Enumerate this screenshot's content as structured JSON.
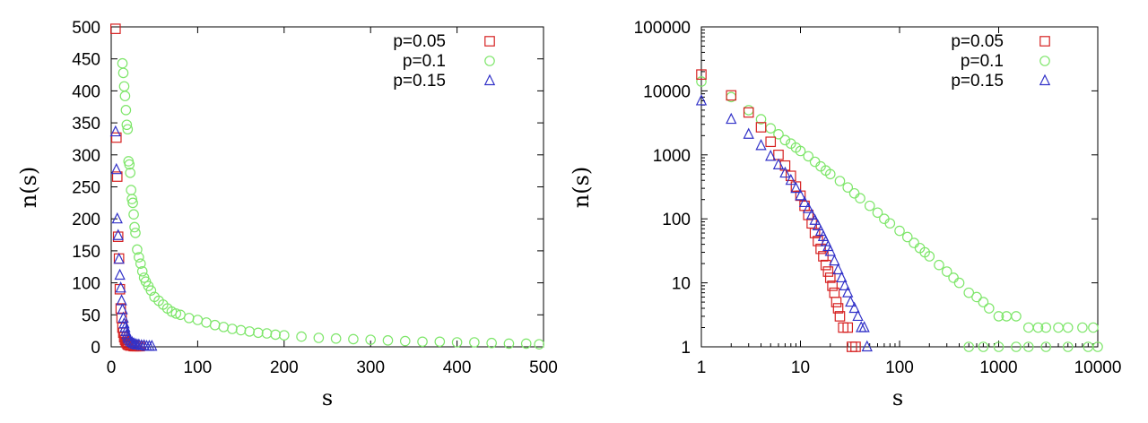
{
  "figure": {
    "left_panel_title": "",
    "right_panel_title": ""
  },
  "chart_data": [
    {
      "type": "scatter",
      "title": "",
      "xlabel": "s",
      "ylabel": "n(s)",
      "xscale": "linear",
      "yscale": "linear",
      "xlim": [
        0,
        500
      ],
      "ylim": [
        0,
        500
      ],
      "xticks": [
        "0",
        "100",
        "200",
        "300",
        "400",
        "500"
      ],
      "yticks": [
        "0",
        "50",
        "100",
        "150",
        "200",
        "250",
        "300",
        "350",
        "400",
        "450",
        "500"
      ],
      "legend_position": "top-right",
      "series": [
        {
          "name": "p=0.05",
          "marker": "square",
          "color": "#d62020",
          "points": [
            [
              5,
              497
            ],
            [
              6,
              327
            ],
            [
              7,
              266
            ],
            [
              8,
              172
            ],
            [
              9,
              138
            ],
            [
              10,
              90
            ],
            [
              11,
              60
            ],
            [
              12,
              45
            ],
            [
              13,
              30
            ],
            [
              14,
              22
            ],
            [
              15,
              15
            ],
            [
              16,
              11
            ],
            [
              17,
              8
            ],
            [
              18,
              6
            ],
            [
              19,
              4
            ],
            [
              20,
              3
            ],
            [
              22,
              2
            ],
            [
              24,
              2
            ],
            [
              26,
              1
            ],
            [
              28,
              1
            ],
            [
              30,
              1
            ],
            [
              33,
              1
            ]
          ]
        },
        {
          "name": "p=0.1",
          "marker": "circle",
          "color": "#7ee66a",
          "points": [
            [
              13,
              443
            ],
            [
              14,
              428
            ],
            [
              15,
              407
            ],
            [
              16,
              392
            ],
            [
              17,
              370
            ],
            [
              18,
              347
            ],
            [
              19,
              340
            ],
            [
              20,
              290
            ],
            [
              21,
              285
            ],
            [
              22,
              272
            ],
            [
              23,
              245
            ],
            [
              24,
              231
            ],
            [
              25,
              225
            ],
            [
              26,
              207
            ],
            [
              27,
              187
            ],
            [
              28,
              178
            ],
            [
              30,
              152
            ],
            [
              32,
              140
            ],
            [
              34,
              130
            ],
            [
              36,
              118
            ],
            [
              38,
              108
            ],
            [
              40,
              102
            ],
            [
              43,
              95
            ],
            [
              46,
              88
            ],
            [
              50,
              78
            ],
            [
              55,
              72
            ],
            [
              60,
              66
            ],
            [
              65,
              60
            ],
            [
              70,
              55
            ],
            [
              75,
              52
            ],
            [
              80,
              50
            ],
            [
              90,
              45
            ],
            [
              100,
              42
            ],
            [
              110,
              38
            ],
            [
              120,
              34
            ],
            [
              130,
              31
            ],
            [
              140,
              28
            ],
            [
              150,
              26
            ],
            [
              160,
              24
            ],
            [
              170,
              22
            ],
            [
              180,
              21
            ],
            [
              190,
              19
            ],
            [
              200,
              18
            ],
            [
              220,
              16
            ],
            [
              240,
              14
            ],
            [
              260,
              13
            ],
            [
              280,
              12
            ],
            [
              300,
              11
            ],
            [
              320,
              10
            ],
            [
              340,
              9
            ],
            [
              360,
              8
            ],
            [
              380,
              8
            ],
            [
              400,
              7
            ],
            [
              420,
              7
            ],
            [
              440,
              6
            ],
            [
              460,
              5
            ],
            [
              480,
              5
            ],
            [
              495,
              4
            ]
          ]
        },
        {
          "name": "p=0.15",
          "marker": "triangle",
          "color": "#3232c8",
          "points": [
            [
              5,
              336
            ],
            [
              6,
              277
            ],
            [
              7,
              200
            ],
            [
              8,
              174
            ],
            [
              9,
              137
            ],
            [
              10,
              112
            ],
            [
              11,
              92
            ],
            [
              12,
              72
            ],
            [
              13,
              58
            ],
            [
              14,
              45
            ],
            [
              15,
              36
            ],
            [
              16,
              30
            ],
            [
              17,
              24
            ],
            [
              18,
              19
            ],
            [
              19,
              15
            ],
            [
              20,
              12
            ],
            [
              22,
              9
            ],
            [
              24,
              7
            ],
            [
              26,
              5
            ],
            [
              28,
              4
            ],
            [
              30,
              3
            ],
            [
              32,
              3
            ],
            [
              35,
              2
            ],
            [
              38,
              2
            ],
            [
              41,
              1
            ],
            [
              44,
              1
            ],
            [
              47,
              1
            ]
          ]
        }
      ]
    },
    {
      "type": "scatter",
      "title": "",
      "xlabel": "s",
      "ylabel": "n(s)",
      "xscale": "log",
      "yscale": "log",
      "xlim": [
        1,
        10000
      ],
      "ylim": [
        1,
        100000
      ],
      "xticks": [
        "1",
        "10",
        "100",
        "1000",
        "10000"
      ],
      "yticks": [
        "1",
        "10",
        "100",
        "1000",
        "10000",
        "100000"
      ],
      "legend_position": "top-right",
      "series": [
        {
          "name": "p=0.05",
          "marker": "square",
          "color": "#d62020",
          "points": [
            [
              1,
              18000
            ],
            [
              2,
              8500
            ],
            [
              3,
              4600
            ],
            [
              4,
              2700
            ],
            [
              5,
              1600
            ],
            [
              6,
              1000
            ],
            [
              7,
              680
            ],
            [
              8,
              470
            ],
            [
              9,
              320
            ],
            [
              10,
              230
            ],
            [
              11,
              160
            ],
            [
              12,
              115
            ],
            [
              13,
              85
            ],
            [
              14,
              60
            ],
            [
              15,
              45
            ],
            [
              16,
              34
            ],
            [
              17,
              26
            ],
            [
              18,
              19
            ],
            [
              19,
              15
            ],
            [
              20,
              12
            ],
            [
              21,
              9
            ],
            [
              22,
              7
            ],
            [
              23,
              5
            ],
            [
              24,
              4
            ],
            [
              25,
              3
            ],
            [
              27,
              2
            ],
            [
              30,
              2
            ],
            [
              33,
              1
            ],
            [
              36,
              1
            ]
          ]
        },
        {
          "name": "p=0.1",
          "marker": "circle",
          "color": "#7ee66a",
          "points": [
            [
              1,
              14000
            ],
            [
              2,
              8000
            ],
            [
              3,
              5000
            ],
            [
              4,
              3600
            ],
            [
              5,
              2600
            ],
            [
              6,
              2100
            ],
            [
              7,
              1700
            ],
            [
              8,
              1500
            ],
            [
              9,
              1300
            ],
            [
              10,
              1150
            ],
            [
              12,
              950
            ],
            [
              14,
              780
            ],
            [
              16,
              660
            ],
            [
              18,
              570
            ],
            [
              20,
              500
            ],
            [
              25,
              390
            ],
            [
              30,
              310
            ],
            [
              35,
              250
            ],
            [
              40,
              210
            ],
            [
              50,
              160
            ],
            [
              60,
              125
            ],
            [
              70,
              100
            ],
            [
              80,
              85
            ],
            [
              100,
              65
            ],
            [
              120,
              52
            ],
            [
              140,
              42
            ],
            [
              160,
              35
            ],
            [
              180,
              30
            ],
            [
              200,
              26
            ],
            [
              250,
              19
            ],
            [
              300,
              15
            ],
            [
              350,
              12
            ],
            [
              400,
              10
            ],
            [
              500,
              7
            ],
            [
              600,
              6
            ],
            [
              700,
              5
            ],
            [
              800,
              4
            ],
            [
              1000,
              3
            ],
            [
              1200,
              3
            ],
            [
              1500,
              3
            ],
            [
              2000,
              2
            ],
            [
              2500,
              2
            ],
            [
              3000,
              2
            ],
            [
              4000,
              2
            ],
            [
              5000,
              2
            ],
            [
              7000,
              2
            ],
            [
              9000,
              2
            ],
            [
              500,
              1
            ],
            [
              700,
              1
            ],
            [
              1000,
              1
            ],
            [
              1500,
              1
            ],
            [
              2000,
              1
            ],
            [
              3000,
              1
            ],
            [
              5000,
              1
            ],
            [
              8000,
              1
            ],
            [
              10000,
              1
            ]
          ]
        },
        {
          "name": "p=0.15",
          "marker": "triangle",
          "color": "#3232c8",
          "points": [
            [
              1,
              7000
            ],
            [
              2,
              3600
            ],
            [
              3,
              2100
            ],
            [
              4,
              1400
            ],
            [
              5,
              950
            ],
            [
              6,
              700
            ],
            [
              7,
              520
            ],
            [
              8,
              400
            ],
            [
              9,
              300
            ],
            [
              10,
              230
            ],
            [
              11,
              180
            ],
            [
              12,
              145
            ],
            [
              13,
              115
            ],
            [
              14,
              95
            ],
            [
              15,
              78
            ],
            [
              16,
              64
            ],
            [
              17,
              53
            ],
            [
              18,
              44
            ],
            [
              19,
              37
            ],
            [
              20,
              31
            ],
            [
              22,
              22
            ],
            [
              24,
              16
            ],
            [
              26,
              12
            ],
            [
              28,
              9
            ],
            [
              30,
              7
            ],
            [
              32,
              5
            ],
            [
              35,
              4
            ],
            [
              38,
              3
            ],
            [
              41,
              2
            ],
            [
              44,
              2
            ],
            [
              47,
              1
            ]
          ]
        }
      ]
    }
  ]
}
